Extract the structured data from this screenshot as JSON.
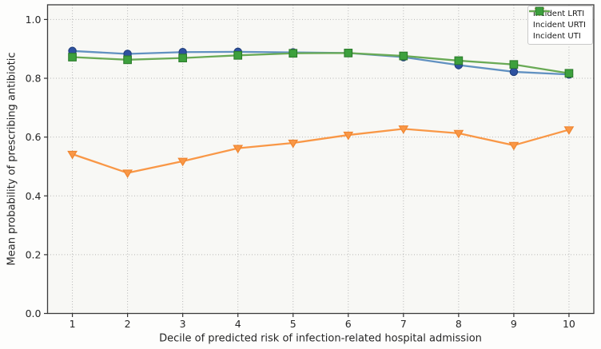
{
  "chart_data": {
    "type": "line",
    "title": "",
    "xlabel": "Decile of predicted risk of infection-related hospital admission",
    "ylabel": "Mean probability of prescribing antibiotic",
    "x": [
      1,
      2,
      3,
      4,
      5,
      6,
      7,
      8,
      9,
      10
    ],
    "xticks": [
      "1",
      "2",
      "3",
      "4",
      "5",
      "6",
      "7",
      "8",
      "9",
      "10"
    ],
    "yticks": [
      "0.0",
      "0.2",
      "0.4",
      "0.6",
      "0.8",
      "1.0"
    ],
    "ytick_values": [
      0,
      0.2,
      0.4,
      0.6,
      0.8,
      1.0
    ],
    "xlim": [
      0.55,
      10.45
    ],
    "ylim": [
      0,
      1.05
    ],
    "grid": "dotted",
    "legend_position": "upper right",
    "series": [
      {
        "name": "Incident LRTI",
        "marker": "circle",
        "line_color": "#6191c1",
        "marker_color": "#2e52a0",
        "marker_edge": "#223f7c",
        "values": [
          0.893,
          0.883,
          0.889,
          0.89,
          0.888,
          0.886,
          0.872,
          0.845,
          0.822,
          0.813
        ]
      },
      {
        "name": "Incident URTI",
        "marker": "triangle-down",
        "line_color": "#f99746",
        "marker_color": "#f99746",
        "marker_edge": "#ef842e",
        "values": [
          0.542,
          0.478,
          0.518,
          0.562,
          0.58,
          0.607,
          0.628,
          0.613,
          0.572,
          0.625
        ]
      },
      {
        "name": "Incident UTI",
        "marker": "square",
        "line_color": "#69aa55",
        "marker_color": "#3da03d",
        "marker_edge": "#2c7c2c",
        "values": [
          0.872,
          0.863,
          0.869,
          0.878,
          0.885,
          0.886,
          0.876,
          0.86,
          0.847,
          0.817
        ]
      }
    ],
    "style": {
      "figure_bg": "#fdfdfc",
      "plot_bg": "#f8f8f5",
      "grid_color": "#b5b5b5",
      "spine_color": "#3b3b3b",
      "tick_color": "#333333",
      "text_color": "#262626"
    }
  }
}
